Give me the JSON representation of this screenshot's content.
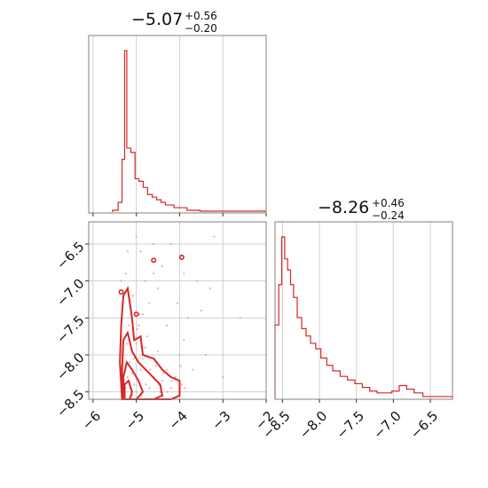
{
  "chart_data": [
    {
      "type": "histogram",
      "panel": "marginal-param-1",
      "title_value": "−5.07",
      "title_plus": "+0.56",
      "title_minus": "−0.20",
      "xlim": [
        -6.1,
        -2.0
      ],
      "xticks": [
        -6,
        -5,
        -4,
        -3,
        -2
      ],
      "bins": [
        {
          "x0": -5.55,
          "x1": -5.42,
          "count": 2
        },
        {
          "x0": -5.42,
          "x1": -5.33,
          "count": 11
        },
        {
          "x0": -5.33,
          "x1": -5.27,
          "count": 60
        },
        {
          "x0": -5.27,
          "x1": -5.22,
          "count": 184
        },
        {
          "x0": -5.22,
          "x1": -5.13,
          "count": 73
        },
        {
          "x0": -5.13,
          "x1": -5.03,
          "count": 68
        },
        {
          "x0": -5.03,
          "x1": -4.94,
          "count": 38
        },
        {
          "x0": -4.94,
          "x1": -4.84,
          "count": 35
        },
        {
          "x0": -4.84,
          "x1": -4.74,
          "count": 28
        },
        {
          "x0": -4.74,
          "x1": -4.63,
          "count": 20
        },
        {
          "x0": -4.63,
          "x1": -4.53,
          "count": 17
        },
        {
          "x0": -4.53,
          "x1": -4.43,
          "count": 14
        },
        {
          "x0": -4.43,
          "x1": -4.33,
          "count": 11
        },
        {
          "x0": -4.33,
          "x1": -4.13,
          "count": 8
        },
        {
          "x0": -4.13,
          "x1": -3.83,
          "count": 5
        },
        {
          "x0": -3.83,
          "x1": -3.53,
          "count": 2
        },
        {
          "x0": -3.53,
          "x1": -2.03,
          "count": 1
        }
      ]
    },
    {
      "type": "scatter-contour",
      "panel": "joint",
      "xlim": [
        -6.1,
        -2.0
      ],
      "ylim": [
        -8.6,
        -6.2
      ],
      "xticks": [
        -6,
        -5,
        -4,
        -3,
        -2
      ],
      "yticks": [
        -6.5,
        -7.0,
        -7.5,
        -8.0,
        -8.5
      ],
      "points": [
        [
          -5.28,
          -8.52
        ],
        [
          -5.25,
          -8.45
        ],
        [
          -5.2,
          -8.3
        ],
        [
          -5.15,
          -8.1
        ],
        [
          -5.1,
          -8.55
        ],
        [
          -5.05,
          -8.4
        ],
        [
          -5.3,
          -8.0
        ],
        [
          -5.22,
          -7.85
        ],
        [
          -5.18,
          -7.6
        ],
        [
          -5.12,
          -7.4
        ],
        [
          -5.08,
          -7.2
        ],
        [
          -5.0,
          -8.5
        ],
        [
          -4.95,
          -8.35
        ],
        [
          -4.9,
          -8.2
        ],
        [
          -4.85,
          -8.05
        ],
        [
          -4.8,
          -7.9
        ],
        [
          -4.75,
          -7.75
        ],
        [
          -4.7,
          -8.45
        ],
        [
          -4.6,
          -8.3
        ],
        [
          -4.55,
          -8.15
        ],
        [
          -4.5,
          -7.95
        ],
        [
          -4.45,
          -8.5
        ],
        [
          -4.4,
          -8.35
        ],
        [
          -4.3,
          -8.2
        ],
        [
          -4.2,
          -8.45
        ],
        [
          -4.1,
          -8.3
        ],
        [
          -4.0,
          -8.0
        ],
        [
          -3.9,
          -7.8
        ],
        [
          -3.8,
          -7.5
        ],
        [
          -3.7,
          -8.2
        ],
        [
          -3.6,
          -7.0
        ],
        [
          -3.5,
          -7.4
        ],
        [
          -4.9,
          -6.6
        ],
        [
          -5.0,
          -6.4
        ],
        [
          -4.8,
          -7.0
        ],
        [
          -4.7,
          -7.3
        ],
        [
          -4.6,
          -6.9
        ],
        [
          -4.5,
          -7.1
        ],
        [
          -4.3,
          -7.6
        ],
        [
          -4.2,
          -6.5
        ],
        [
          -4.6,
          -6.5
        ],
        [
          -4.4,
          -6.8
        ],
        [
          -5.35,
          -7.0
        ],
        [
          -5.32,
          -7.3
        ],
        [
          -5.25,
          -6.9
        ],
        [
          -5.2,
          -6.6
        ],
        [
          -4.95,
          -7.6
        ],
        [
          -4.85,
          -7.45
        ],
        [
          -3.9,
          -6.9
        ],
        [
          -3.4,
          -8.0
        ],
        [
          -3.3,
          -7.1
        ],
        [
          -2.6,
          -7.5
        ],
        [
          -3.0,
          -8.3
        ],
        [
          -3.2,
          -6.4
        ],
        [
          -4.05,
          -7.3
        ],
        [
          -3.95,
          -8.4
        ],
        [
          -5.15,
          -8.45
        ],
        [
          -5.1,
          -8.25
        ],
        [
          -5.05,
          -8.05
        ],
        [
          -5.0,
          -7.85
        ],
        [
          -4.98,
          -7.65
        ],
        [
          -4.92,
          -7.45
        ],
        [
          -4.88,
          -8.55
        ],
        [
          -4.78,
          -8.4
        ],
        [
          -4.68,
          -8.2
        ],
        [
          -4.58,
          -8.05
        ],
        [
          -4.48,
          -8.4
        ],
        [
          -4.38,
          -8.25
        ],
        [
          -4.28,
          -8.5
        ],
        [
          -4.18,
          -8.35
        ],
        [
          -3.98,
          -8.15
        ],
        [
          -3.88,
          -8.45
        ]
      ],
      "contour_levels": 4
    },
    {
      "type": "histogram",
      "panel": "marginal-param-2",
      "title_value": "−8.26",
      "title_plus": "+0.46",
      "title_minus": "−0.24",
      "xlim": [
        -8.6,
        -6.2
      ],
      "xticks": [
        -8.5,
        -8.0,
        -7.5,
        -7.0,
        -6.5
      ],
      "bins": [
        {
          "x0": -8.6,
          "x1": -8.55,
          "count": 40
        },
        {
          "x0": -8.55,
          "x1": -8.51,
          "count": 62
        },
        {
          "x0": -8.51,
          "x1": -8.47,
          "count": 88
        },
        {
          "x0": -8.47,
          "x1": -8.43,
          "count": 76
        },
        {
          "x0": -8.43,
          "x1": -8.39,
          "count": 70
        },
        {
          "x0": -8.39,
          "x1": -8.35,
          "count": 62
        },
        {
          "x0": -8.35,
          "x1": -8.3,
          "count": 55
        },
        {
          "x0": -8.3,
          "x1": -8.24,
          "count": 44
        },
        {
          "x0": -8.24,
          "x1": -8.18,
          "count": 38
        },
        {
          "x0": -8.18,
          "x1": -8.12,
          "count": 34
        },
        {
          "x0": -8.12,
          "x1": -8.05,
          "count": 30
        },
        {
          "x0": -8.05,
          "x1": -7.98,
          "count": 27
        },
        {
          "x0": -7.98,
          "x1": -7.9,
          "count": 22
        },
        {
          "x0": -7.9,
          "x1": -7.82,
          "count": 18
        },
        {
          "x0": -7.82,
          "x1": -7.72,
          "count": 15
        },
        {
          "x0": -7.72,
          "x1": -7.62,
          "count": 12
        },
        {
          "x0": -7.62,
          "x1": -7.52,
          "count": 10
        },
        {
          "x0": -7.52,
          "x1": -7.42,
          "count": 8
        },
        {
          "x0": -7.42,
          "x1": -7.32,
          "count": 6
        },
        {
          "x0": -7.32,
          "x1": -7.22,
          "count": 4
        },
        {
          "x0": -7.22,
          "x1": -7.12,
          "count": 3
        },
        {
          "x0": -7.12,
          "x1": -7.02,
          "count": 3
        },
        {
          "x0": -7.02,
          "x1": -6.92,
          "count": 4
        },
        {
          "x0": -6.92,
          "x1": -6.82,
          "count": 7
        },
        {
          "x0": -6.82,
          "x1": -6.72,
          "count": 5
        },
        {
          "x0": -6.72,
          "x1": -6.6,
          "count": 3
        },
        {
          "x0": -6.6,
          "x1": -6.45,
          "count": 1
        },
        {
          "x0": -6.45,
          "x1": -6.2,
          "count": 1
        }
      ]
    }
  ],
  "colors": {
    "series": "#d62728",
    "points": "#e88a8a",
    "fill_outer": "#f7c7c7",
    "fill_inner": "#ee9a9a",
    "frame": "#808080",
    "grid": "#d0d0d0"
  },
  "tick_labels": {
    "top_x": [
      "−6",
      "−5",
      "−4",
      "−3",
      "−2"
    ],
    "joint_y": [
      "−6.5",
      "−7.0",
      "−7.5",
      "−8.0",
      "−8.5"
    ],
    "right_x": [
      "−8.5",
      "−8.0",
      "−7.5",
      "−7.0",
      "−6.5"
    ]
  }
}
